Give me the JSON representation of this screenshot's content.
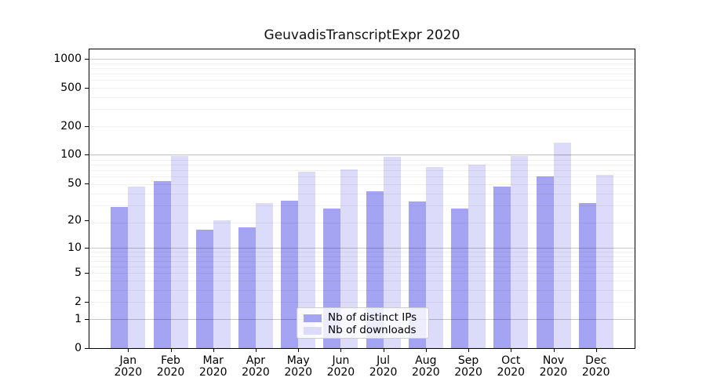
{
  "title": "GeuvadisTranscriptExpr 2020",
  "chart_data": {
    "type": "bar",
    "title": "GeuvadisTranscriptExpr 2020",
    "scale": "log1p",
    "categories": [
      "Jan",
      "Feb",
      "Mar",
      "Apr",
      "May",
      "Jun",
      "Jul",
      "Aug",
      "Sep",
      "Oct",
      "Nov",
      "Dec"
    ],
    "year": "2020",
    "series": [
      {
        "name": "Nb of distinct IPs",
        "color": "#a4a4f2",
        "values": [
          28,
          53,
          16,
          17,
          33,
          27,
          41,
          32,
          27,
          46,
          59,
          31
        ]
      },
      {
        "name": "Nb of downloads",
        "color": "#dcdcfa",
        "values": [
          46,
          98,
          20,
          31,
          67,
          70,
          95,
          74,
          79,
          98,
          134,
          62
        ]
      }
    ],
    "yticks": [
      0,
      1,
      2,
      5,
      10,
      20,
      50,
      100,
      200,
      500,
      1000
    ],
    "major_gridlines": [
      1,
      10,
      100,
      1000
    ],
    "minor_gridlines": [
      2,
      3,
      4,
      5,
      6,
      7,
      8,
      9,
      19,
      29,
      39,
      49,
      59,
      69,
      79,
      89,
      99,
      199,
      299,
      399,
      499,
      599,
      699,
      799,
      899
    ],
    "ylim": [
      0,
      1250
    ],
    "xlabel": "",
    "ylabel": "",
    "grid": true,
    "legend_position": "lower center"
  },
  "legend": {
    "items": [
      {
        "label": "Nb of distinct IPs",
        "color": "#a4a4f2"
      },
      {
        "label": "Nb of downloads",
        "color": "#dcdcfa"
      }
    ]
  },
  "colors": {
    "ips_bar": "#a4a4f2",
    "downloads_bar": "#dcdcfa",
    "major_grid": "#c7c7c7",
    "minor_grid": "#ebebeb",
    "axis": "#000000",
    "background": "#ffffff"
  }
}
